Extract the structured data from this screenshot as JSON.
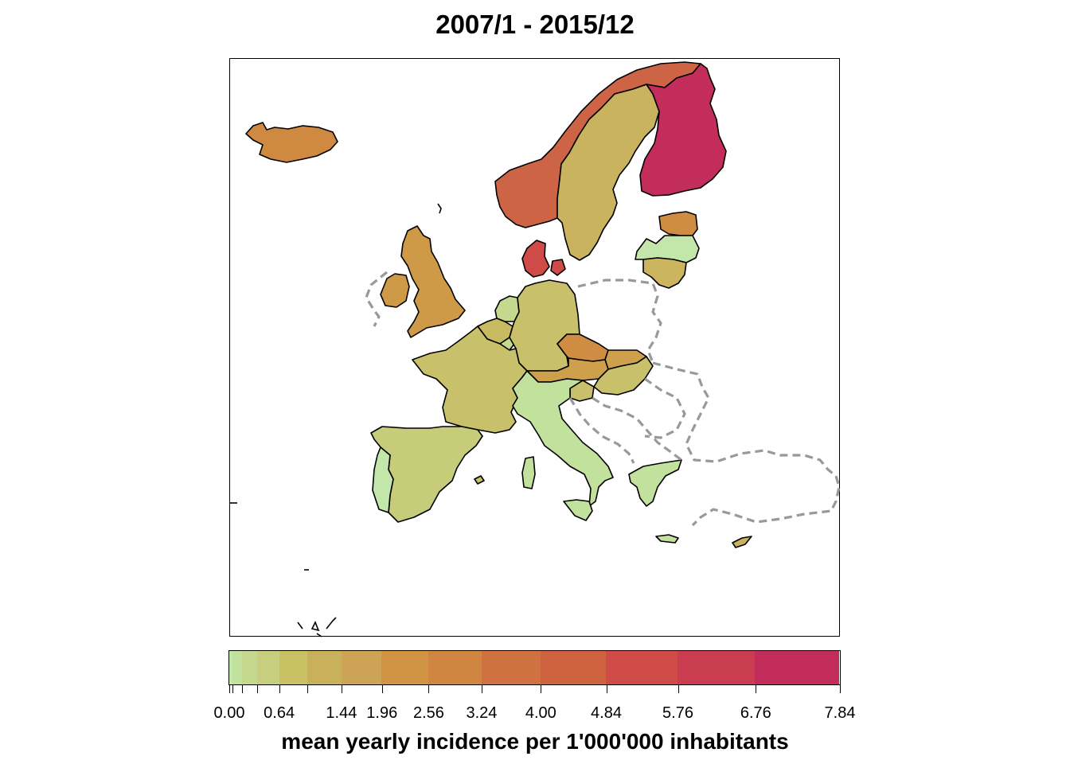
{
  "map": {
    "title": "2007/1 - 2015/12",
    "legend_title": "mean yearly incidence per 1'000'000 inhabitants",
    "legend_breaks": [
      0.0,
      0.04,
      0.16,
      0.36,
      0.64,
      1.0,
      1.44,
      1.96,
      2.56,
      3.24,
      4.0,
      4.84,
      5.76,
      6.76,
      7.84
    ],
    "legend_tick_labels": [
      "0.00",
      "0.64",
      "1.44",
      "1.96",
      "2.56",
      "3.24",
      "4.00",
      "4.84",
      "5.76",
      "6.76",
      "7.84"
    ],
    "legend_tick_values": [
      0.0,
      0.64,
      1.44,
      1.96,
      2.56,
      3.24,
      4.0,
      4.84,
      5.76,
      6.76,
      7.84
    ],
    "legend_colors": [
      "#c3e6aa",
      "#c2e19c",
      "#c4d98e",
      "#c7cf7f",
      "#c9c163",
      "#c8b15a",
      "#cda356",
      "#d09444",
      "#d08540",
      "#cf7140",
      "#d0633f",
      "#cf4b47",
      "#ca3d50",
      "#c22d5b"
    ],
    "no_data_border_color": "#999999",
    "countries": [
      {
        "name": "Iceland",
        "color": "#cf8940"
      },
      {
        "name": "Norway",
        "color": "#cd6445"
      },
      {
        "name": "Sweden",
        "color": "#c9b35e"
      },
      {
        "name": "Finland",
        "color": "#c22d5b"
      },
      {
        "name": "Estonia",
        "color": "#cf8d44"
      },
      {
        "name": "Latvia",
        "color": "#c3e6aa"
      },
      {
        "name": "Lithuania",
        "color": "#cbb55f"
      },
      {
        "name": "Denmark",
        "color": "#cf4b47"
      },
      {
        "name": "United Kingdom",
        "color": "#cf9a48"
      },
      {
        "name": "Ireland",
        "color": "#cf9a48"
      },
      {
        "name": "Netherlands",
        "color": "#c4d98e"
      },
      {
        "name": "Belgium",
        "color": "#c8ba60"
      },
      {
        "name": "Luxembourg",
        "color": "#c4d98e"
      },
      {
        "name": "Germany",
        "color": "#c8c06a"
      },
      {
        "name": "France",
        "color": "#c8c06a"
      },
      {
        "name": "Czech Republic",
        "color": "#cf8d44"
      },
      {
        "name": "Austria",
        "color": "#cfa04c"
      },
      {
        "name": "Slovakia",
        "color": "#cfa04c"
      },
      {
        "name": "Hungary",
        "color": "#c8c06a"
      },
      {
        "name": "Slovenia",
        "color": "#c8c06a"
      },
      {
        "name": "Italy",
        "color": "#c2e19c"
      },
      {
        "name": "Spain",
        "color": "#c6cc7a"
      },
      {
        "name": "Portugal",
        "color": "#c3e6aa"
      },
      {
        "name": "Greece",
        "color": "#c2e19c"
      },
      {
        "name": "Malta",
        "color": "#c8c06a"
      },
      {
        "name": "Cyprus",
        "color": "#c8b15a"
      }
    ]
  }
}
